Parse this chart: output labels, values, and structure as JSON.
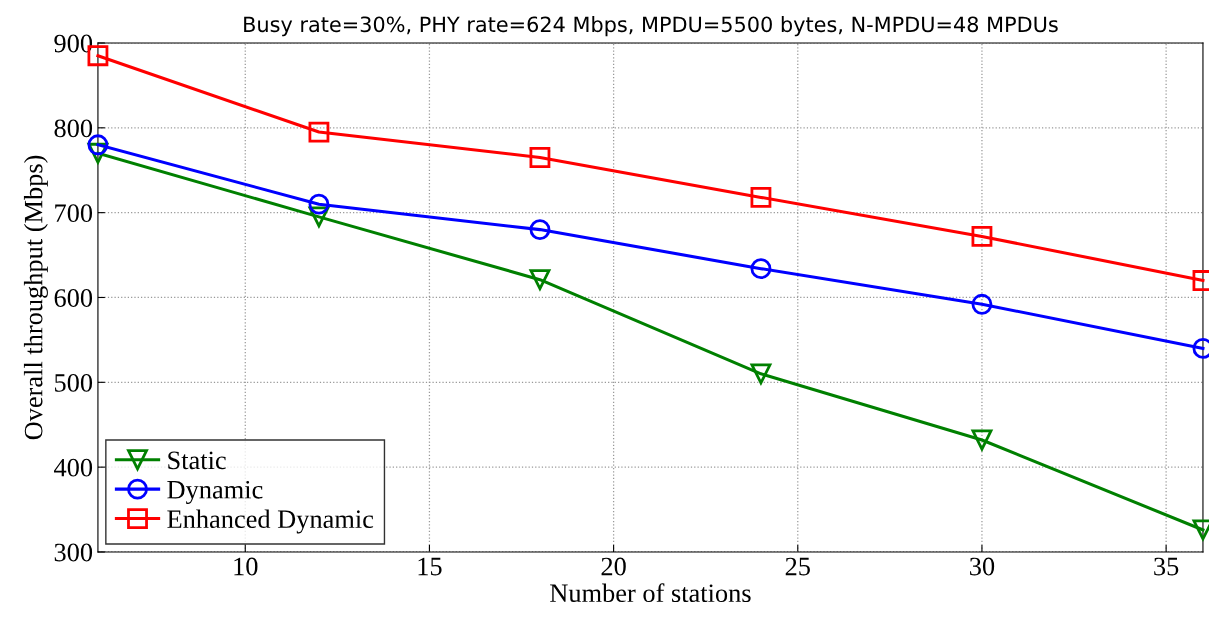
{
  "chart_data": {
    "type": "line",
    "title": "Busy rate=30%, PHY rate=624 Mbps, MPDU=5500 bytes, N-MPDU=48 MPDUs",
    "xlabel": "Number of stations",
    "ylabel": "Overall throughput (Mbps)",
    "x": [
      6,
      12,
      18,
      24,
      30,
      36
    ],
    "series": [
      {
        "name": "Static",
        "color": "#008000",
        "marker": "triangle",
        "values": [
          770,
          695,
          621,
          510,
          432,
          326
        ]
      },
      {
        "name": "Dynamic",
        "color": "#0000ff",
        "marker": "circle",
        "values": [
          780,
          710,
          680,
          634,
          592,
          540
        ]
      },
      {
        "name": "Enhanced Dynamic",
        "color": "#ff0000",
        "marker": "square",
        "values": [
          885,
          795,
          765,
          718,
          672,
          620
        ]
      }
    ],
    "xlim": [
      6,
      36
    ],
    "xticks": [
      10,
      15,
      20,
      25,
      30,
      35
    ],
    "ylim": [
      300,
      900
    ],
    "yticks": [
      300,
      400,
      500,
      600,
      700,
      800,
      900
    ],
    "grid": true,
    "legend": "bottom left",
    "line_style": "solid"
  }
}
